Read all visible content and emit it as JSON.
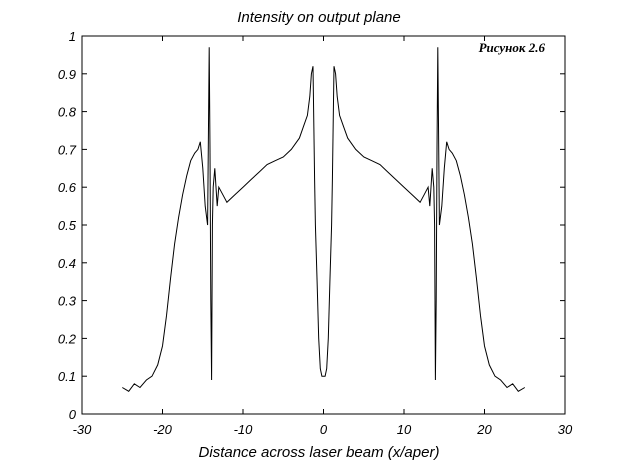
{
  "chart_data": {
    "type": "line",
    "title": "Intensity on output plane",
    "xlabel": "Distance across laser beam (x/aper)",
    "ylabel": "",
    "annotation": "Рисунок 2.6",
    "xlim": [
      -30,
      30
    ],
    "ylim": [
      0,
      1
    ],
    "xticks": [
      -30,
      -20,
      -10,
      0,
      10,
      20,
      30
    ],
    "xtick_labels": [
      "-30",
      "-20",
      "-10",
      "0",
      "10",
      "20",
      "30"
    ],
    "yticks": [
      0,
      0.1,
      0.2,
      0.3,
      0.4,
      0.5,
      0.6,
      0.7,
      0.8,
      0.9,
      1
    ],
    "ytick_labels": [
      "0",
      "0.1",
      "0.2",
      "0.3",
      "0.4",
      "0.5",
      "0.6",
      "0.7",
      "0.8",
      "0.9",
      "1"
    ],
    "grid": false,
    "legend": "none",
    "series": [
      {
        "color": "#000000",
        "x": [
          -25,
          -24.2,
          -23.5,
          -22.8,
          -22,
          -21.3,
          -20.6,
          -20,
          -19.5,
          -19,
          -18.5,
          -18,
          -17.5,
          -17,
          -16.5,
          -16,
          -15.6,
          -15.3,
          -15,
          -14.7,
          -14.4,
          -14.2,
          -14.1,
          -14.0,
          -13.9,
          -13.8,
          -13.7,
          -13.5,
          -13.2,
          -13,
          -12.5,
          -12,
          -11,
          -10,
          -9,
          -8,
          -7,
          -6,
          -5,
          -4,
          -3,
          -2.5,
          -2,
          -1.7,
          -1.5,
          -1.3,
          -1.1,
          -1,
          -0.8,
          -0.6,
          -0.4,
          -0.2,
          0,
          0.2,
          0.4,
          0.6,
          0.8,
          1,
          1.1,
          1.3,
          1.5,
          1.7,
          2,
          2.5,
          3,
          4,
          5,
          6,
          7,
          8,
          9,
          10,
          11,
          12,
          12.5,
          13,
          13.2,
          13.5,
          13.7,
          13.8,
          13.9,
          14.0,
          14.1,
          14.2,
          14.4,
          14.7,
          15,
          15.3,
          15.6,
          16,
          16.5,
          17,
          17.5,
          18,
          18.5,
          19,
          19.5,
          20,
          20.6,
          21.3,
          22,
          22.8,
          23.5,
          24.2,
          25
        ],
        "y": [
          0.07,
          0.06,
          0.08,
          0.07,
          0.09,
          0.1,
          0.13,
          0.18,
          0.26,
          0.36,
          0.45,
          0.52,
          0.58,
          0.63,
          0.67,
          0.69,
          0.7,
          0.72,
          0.65,
          0.55,
          0.5,
          0.97,
          0.7,
          0.3,
          0.09,
          0.5,
          0.6,
          0.65,
          0.55,
          0.6,
          0.58,
          0.56,
          0.58,
          0.6,
          0.62,
          0.64,
          0.66,
          0.67,
          0.68,
          0.7,
          0.73,
          0.76,
          0.79,
          0.84,
          0.9,
          0.92,
          0.62,
          0.5,
          0.35,
          0.2,
          0.12,
          0.1,
          0.1,
          0.1,
          0.12,
          0.2,
          0.35,
          0.5,
          0.62,
          0.92,
          0.9,
          0.84,
          0.79,
          0.76,
          0.73,
          0.7,
          0.68,
          0.67,
          0.66,
          0.64,
          0.62,
          0.6,
          0.58,
          0.56,
          0.58,
          0.6,
          0.55,
          0.65,
          0.6,
          0.5,
          0.09,
          0.3,
          0.7,
          0.97,
          0.5,
          0.55,
          0.65,
          0.72,
          0.7,
          0.69,
          0.67,
          0.63,
          0.58,
          0.52,
          0.45,
          0.36,
          0.26,
          0.18,
          0.13,
          0.1,
          0.09,
          0.07,
          0.08,
          0.06,
          0.07
        ]
      }
    ]
  }
}
